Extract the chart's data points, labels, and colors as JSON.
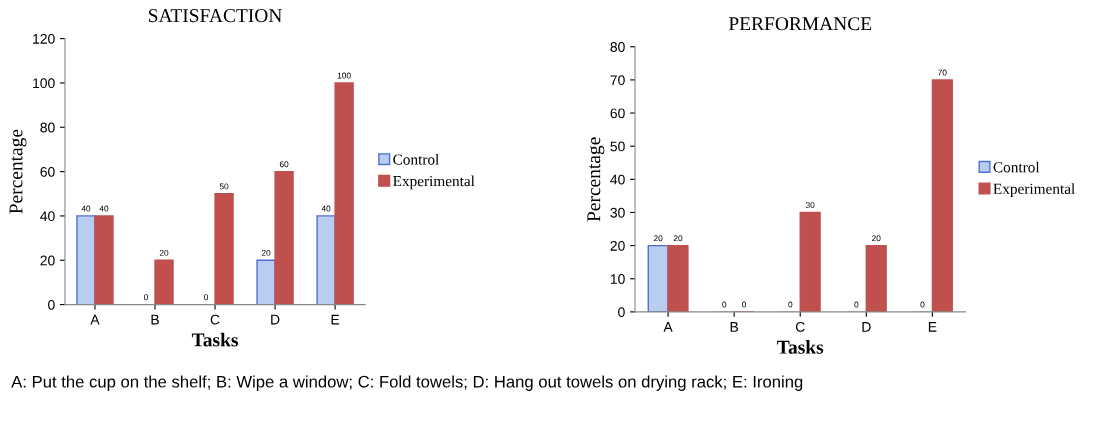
{
  "chart_data": [
    {
      "type": "bar",
      "title": "SATISFACTION",
      "xlabel": "Tasks",
      "ylabel": "Percentage",
      "categories": [
        "A",
        "B",
        "C",
        "D",
        "E"
      ],
      "series": [
        {
          "name": "Control",
          "color": "#b9cdf0",
          "values": [
            40,
            0,
            0,
            20,
            40
          ]
        },
        {
          "name": "Experimental",
          "color": "#c0504d",
          "values": [
            40,
            20,
            50,
            60,
            100
          ]
        }
      ],
      "ylim": [
        0,
        120
      ],
      "yticks": [
        0,
        20,
        40,
        60,
        80,
        100,
        120
      ],
      "data_labels": true,
      "legend": "right",
      "grid": false,
      "annotations": [
        "A: Put the cup on the shelf; B: Wipe a window; C: Fold towels; D: Hang out towels on drying rack; E: Ironing"
      ]
    },
    {
      "type": "bar",
      "title": "PERFORMANCE",
      "xlabel": "Tasks",
      "ylabel": "Percentage",
      "categories": [
        "A",
        "B",
        "C",
        "D",
        "E"
      ],
      "series": [
        {
          "name": "Control",
          "color": "#b9cdf0",
          "values": [
            20,
            0,
            0,
            0,
            0
          ]
        },
        {
          "name": "Experimental",
          "color": "#c0504d",
          "values": [
            20,
            0,
            30,
            20,
            70
          ]
        }
      ],
      "ylim": [
        0,
        80
      ],
      "yticks": [
        0,
        10,
        20,
        30,
        40,
        50,
        60,
        70,
        80
      ],
      "data_labels": true,
      "legend": "right",
      "grid": false
    }
  ]
}
